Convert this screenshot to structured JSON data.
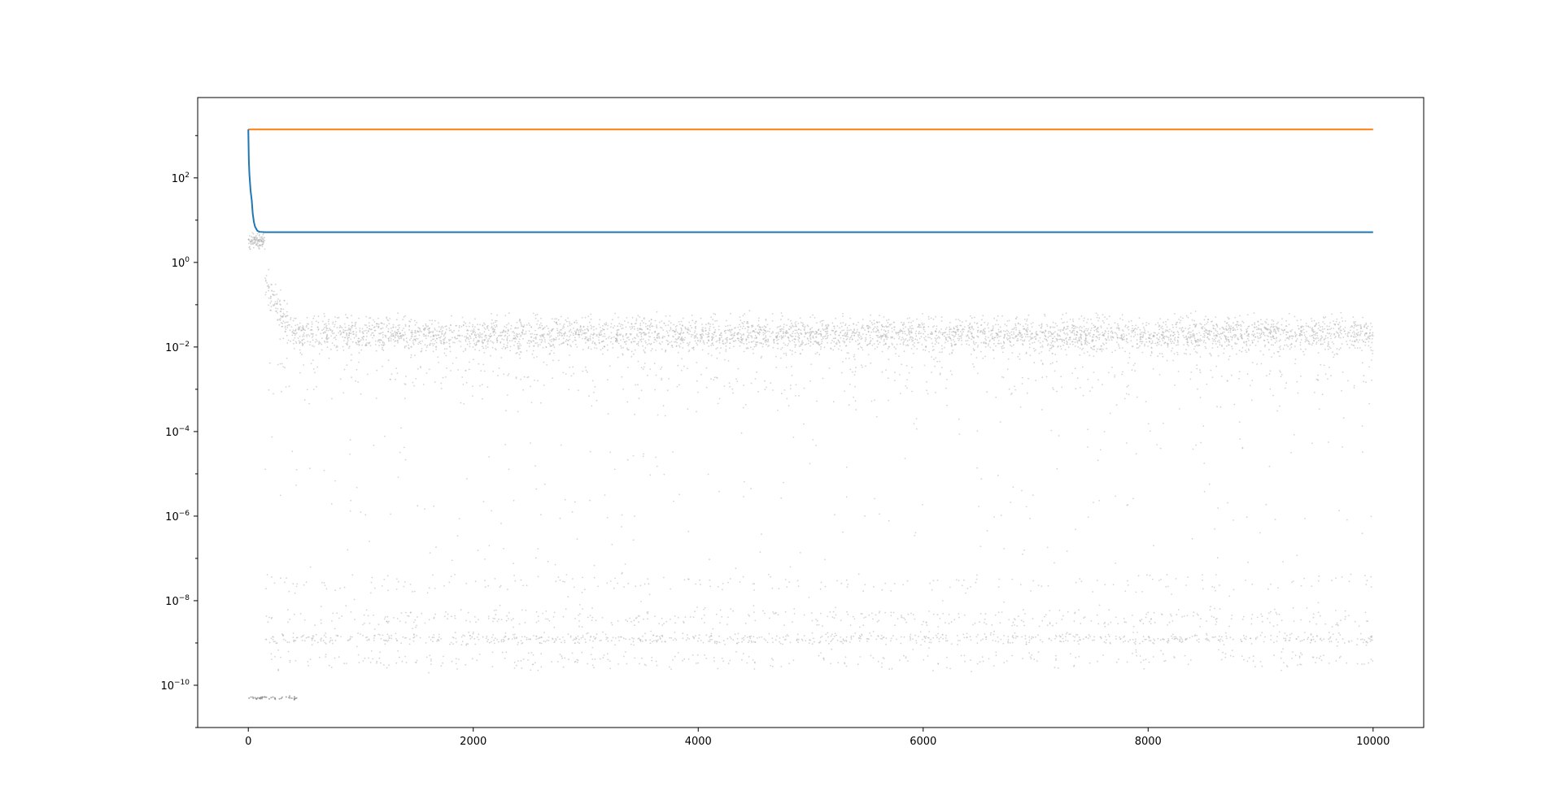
{
  "chart_data": {
    "type": "line",
    "title": "",
    "xlabel": "",
    "ylabel": "",
    "yscale": "log",
    "xlim": [
      -450,
      10450
    ],
    "ylim_log10": [
      -11.0,
      3.9
    ],
    "grid": false,
    "legend": "none",
    "x_ticks": [
      {
        "value": 0,
        "label": "0"
      },
      {
        "value": 2000,
        "label": "2000"
      },
      {
        "value": 4000,
        "label": "4000"
      },
      {
        "value": 6000,
        "label": "6000"
      },
      {
        "value": 8000,
        "label": "8000"
      },
      {
        "value": 10000,
        "label": "10000"
      }
    ],
    "y_ticks": [
      {
        "exp": 2,
        "base": "10",
        "sup": "2"
      },
      {
        "exp": 0,
        "base": "10",
        "sup": "0"
      },
      {
        "exp": -2,
        "base": "10",
        "sup": "−2"
      },
      {
        "exp": -4,
        "base": "10",
        "sup": "−4"
      },
      {
        "exp": -6,
        "base": "10",
        "sup": "−6"
      },
      {
        "exp": -8,
        "base": "10",
        "sup": "−8"
      },
      {
        "exp": -10,
        "base": "10",
        "sup": "−10"
      }
    ],
    "series": [
      {
        "kind": "line",
        "color": "#ff7f0e",
        "x": [
          0,
          10000
        ],
        "y": [
          1400,
          1400
        ]
      },
      {
        "kind": "line",
        "color": "#1f77b4",
        "x": [
          0,
          5,
          10,
          20,
          30,
          40,
          50,
          60,
          80,
          100,
          150,
          300,
          1000,
          5000,
          10000
        ],
        "y": [
          1400,
          250,
          120,
          50,
          30,
          14,
          9,
          7,
          5.6,
          5.3,
          5.2,
          5.2,
          5.2,
          5.2,
          5.2
        ]
      },
      {
        "kind": "scatter",
        "color": "#b0b0b0",
        "description_bands_log10": [
          {
            "center": -1.7,
            "spread": 0.35,
            "share": 0.62
          },
          {
            "center": -2.6,
            "spread": 0.7,
            "share": 0.08
          },
          {
            "center": -8.9,
            "spread": 0.12,
            "share": 0.12
          },
          {
            "center": -8.4,
            "spread": 0.2,
            "share": 0.06
          },
          {
            "center": -7.6,
            "spread": 0.2,
            "share": 0.03
          },
          {
            "center": -9.4,
            "spread": 0.2,
            "share": 0.05
          },
          {
            "center": -5.5,
            "spread": 2.5,
            "share": 0.04
          }
        ],
        "x_range": [
          0,
          10000
        ],
        "n_points": 7000
      }
    ]
  }
}
